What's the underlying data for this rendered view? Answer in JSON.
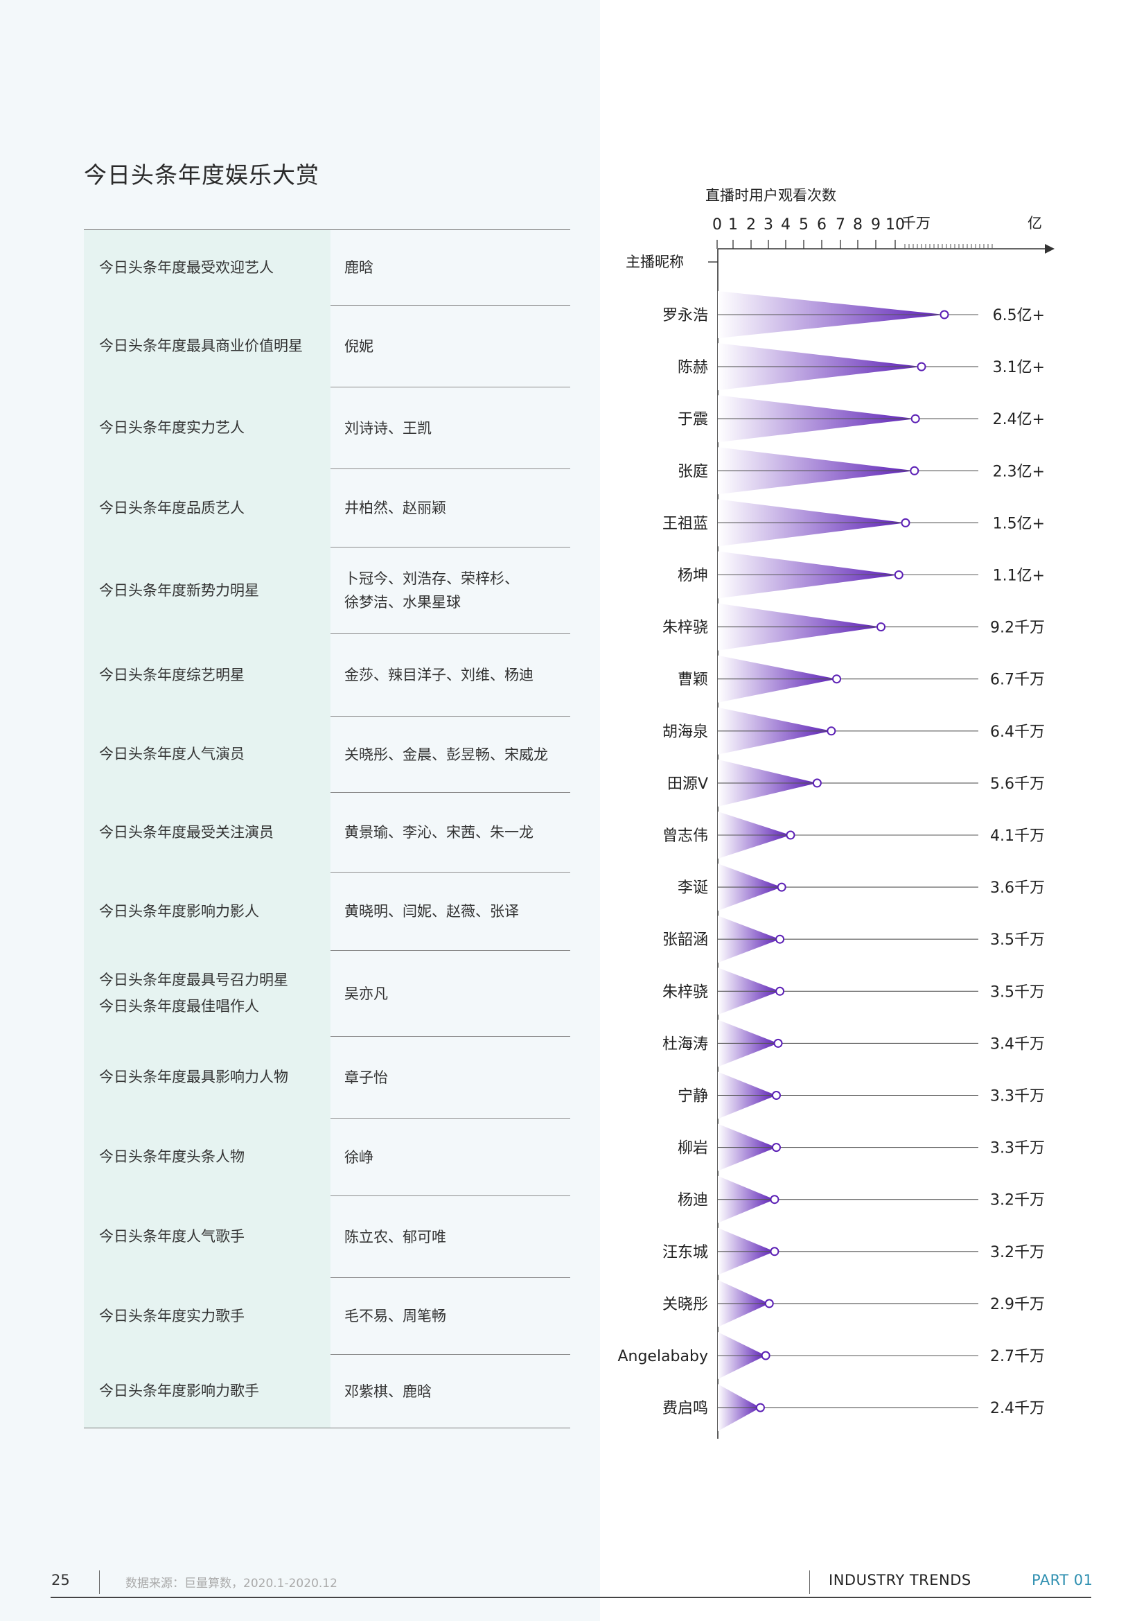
{
  "title": "今日头条年度娱乐大赏",
  "awards": [
    {
      "category": [
        "今日头条年度最受欢迎艺人"
      ],
      "names": [
        "鹿晗"
      ]
    },
    {
      "category": [
        "今日头条年度最具商业价值明星"
      ],
      "names": [
        "倪妮"
      ]
    },
    {
      "category": [
        "今日头条年度实力艺人"
      ],
      "names": [
        "刘诗诗、王凯"
      ]
    },
    {
      "category": [
        "今日头条年度品质艺人"
      ],
      "names": [
        "井柏然、赵丽颖"
      ]
    },
    {
      "category": [
        "今日头条年度新势力明星"
      ],
      "names": [
        "卜冠今、刘浩存、荣梓杉、",
        "徐梦洁、水果星球"
      ]
    },
    {
      "category": [
        "今日头条年度综艺明星"
      ],
      "names": [
        "金莎、辣目洋子、刘维、杨迪"
      ]
    },
    {
      "category": [
        "今日头条年度人气演员"
      ],
      "names": [
        "关晓彤、金晨、彭昱畅、宋威龙"
      ]
    },
    {
      "category": [
        "今日头条年度最受关注演员"
      ],
      "names": [
        "黄景瑜、李沁、宋茜、朱一龙"
      ]
    },
    {
      "category": [
        "今日头条年度影响力影人"
      ],
      "names": [
        "黄晓明、闫妮、赵薇、张译"
      ]
    },
    {
      "category": [
        "今日头条年度最具号召力明星",
        "今日头条年度最佳唱作人"
      ],
      "names": [
        "吴亦凡"
      ]
    },
    {
      "category": [
        "今日头条年度最具影响力人物"
      ],
      "names": [
        "章子怡"
      ]
    },
    {
      "category": [
        "今日头条年度头条人物"
      ],
      "names": [
        "徐峥"
      ]
    },
    {
      "category": [
        "今日头条年度人气歌手"
      ],
      "names": [
        "陈立农、郁可唯"
      ]
    },
    {
      "category": [
        "今日头条年度实力歌手"
      ],
      "names": [
        "毛不易、周笔畅"
      ]
    },
    {
      "category": [
        "今日头条年度影响力歌手"
      ],
      "names": [
        "邓紫棋、鹿晗"
      ]
    }
  ],
  "chart_data": {
    "type": "lollipop",
    "title": "直播时用户观看次数",
    "xlabel": "直播时用户观看次数",
    "ylabel": "主播昵称",
    "x_axis_ticks": [
      "0",
      "1",
      "2",
      "3",
      "4",
      "5",
      "6",
      "7",
      "8",
      "9",
      "10"
    ],
    "x_axis_unit_1": "千万",
    "x_axis_unit_2": "亿",
    "categories": [
      "罗永浩",
      "陈赫",
      "于震",
      "张庭",
      "王祖蓝",
      "杨坤",
      "朱梓骁",
      "曹颖",
      "胡海泉",
      "田源V",
      "曾志伟",
      "李诞",
      "张韶涵",
      "朱梓骁",
      "杜海涛",
      "宁静",
      "柳岩",
      "杨迪",
      "汪东城",
      "关晓彤",
      "Angelababy",
      "费启鸣"
    ],
    "values": [
      65000,
      31000,
      24000,
      23000,
      15000,
      11000,
      9200,
      6700,
      6400,
      5600,
      4100,
      3600,
      3500,
      3500,
      3400,
      3300,
      3300,
      3200,
      3200,
      2900,
      2700,
      2400
    ],
    "value_unit": "万",
    "value_labels": [
      "6.5亿+",
      "3.1亿+",
      "2.4亿+",
      "2.3亿+",
      "1.5亿+",
      "1.1亿+",
      "9.2千万",
      "6.7千万",
      "6.4千万",
      "5.6千万",
      "4.1千万",
      "3.6千万",
      "3.5千万",
      "3.5千万",
      "3.4千万",
      "3.3千万",
      "3.3千万",
      "3.2千万",
      "3.2千万",
      "2.9千万",
      "2.7千万",
      "2.4千万"
    ],
    "colors": {
      "accent": "#5b1fb5",
      "fade": "#ffffff",
      "axis": "#333333"
    }
  },
  "footer": {
    "page_number": "25",
    "source": "数据来源：巨量算数，2020.1-2020.12",
    "section": "INDUSTRY TRENDS",
    "part": "PART 01"
  }
}
